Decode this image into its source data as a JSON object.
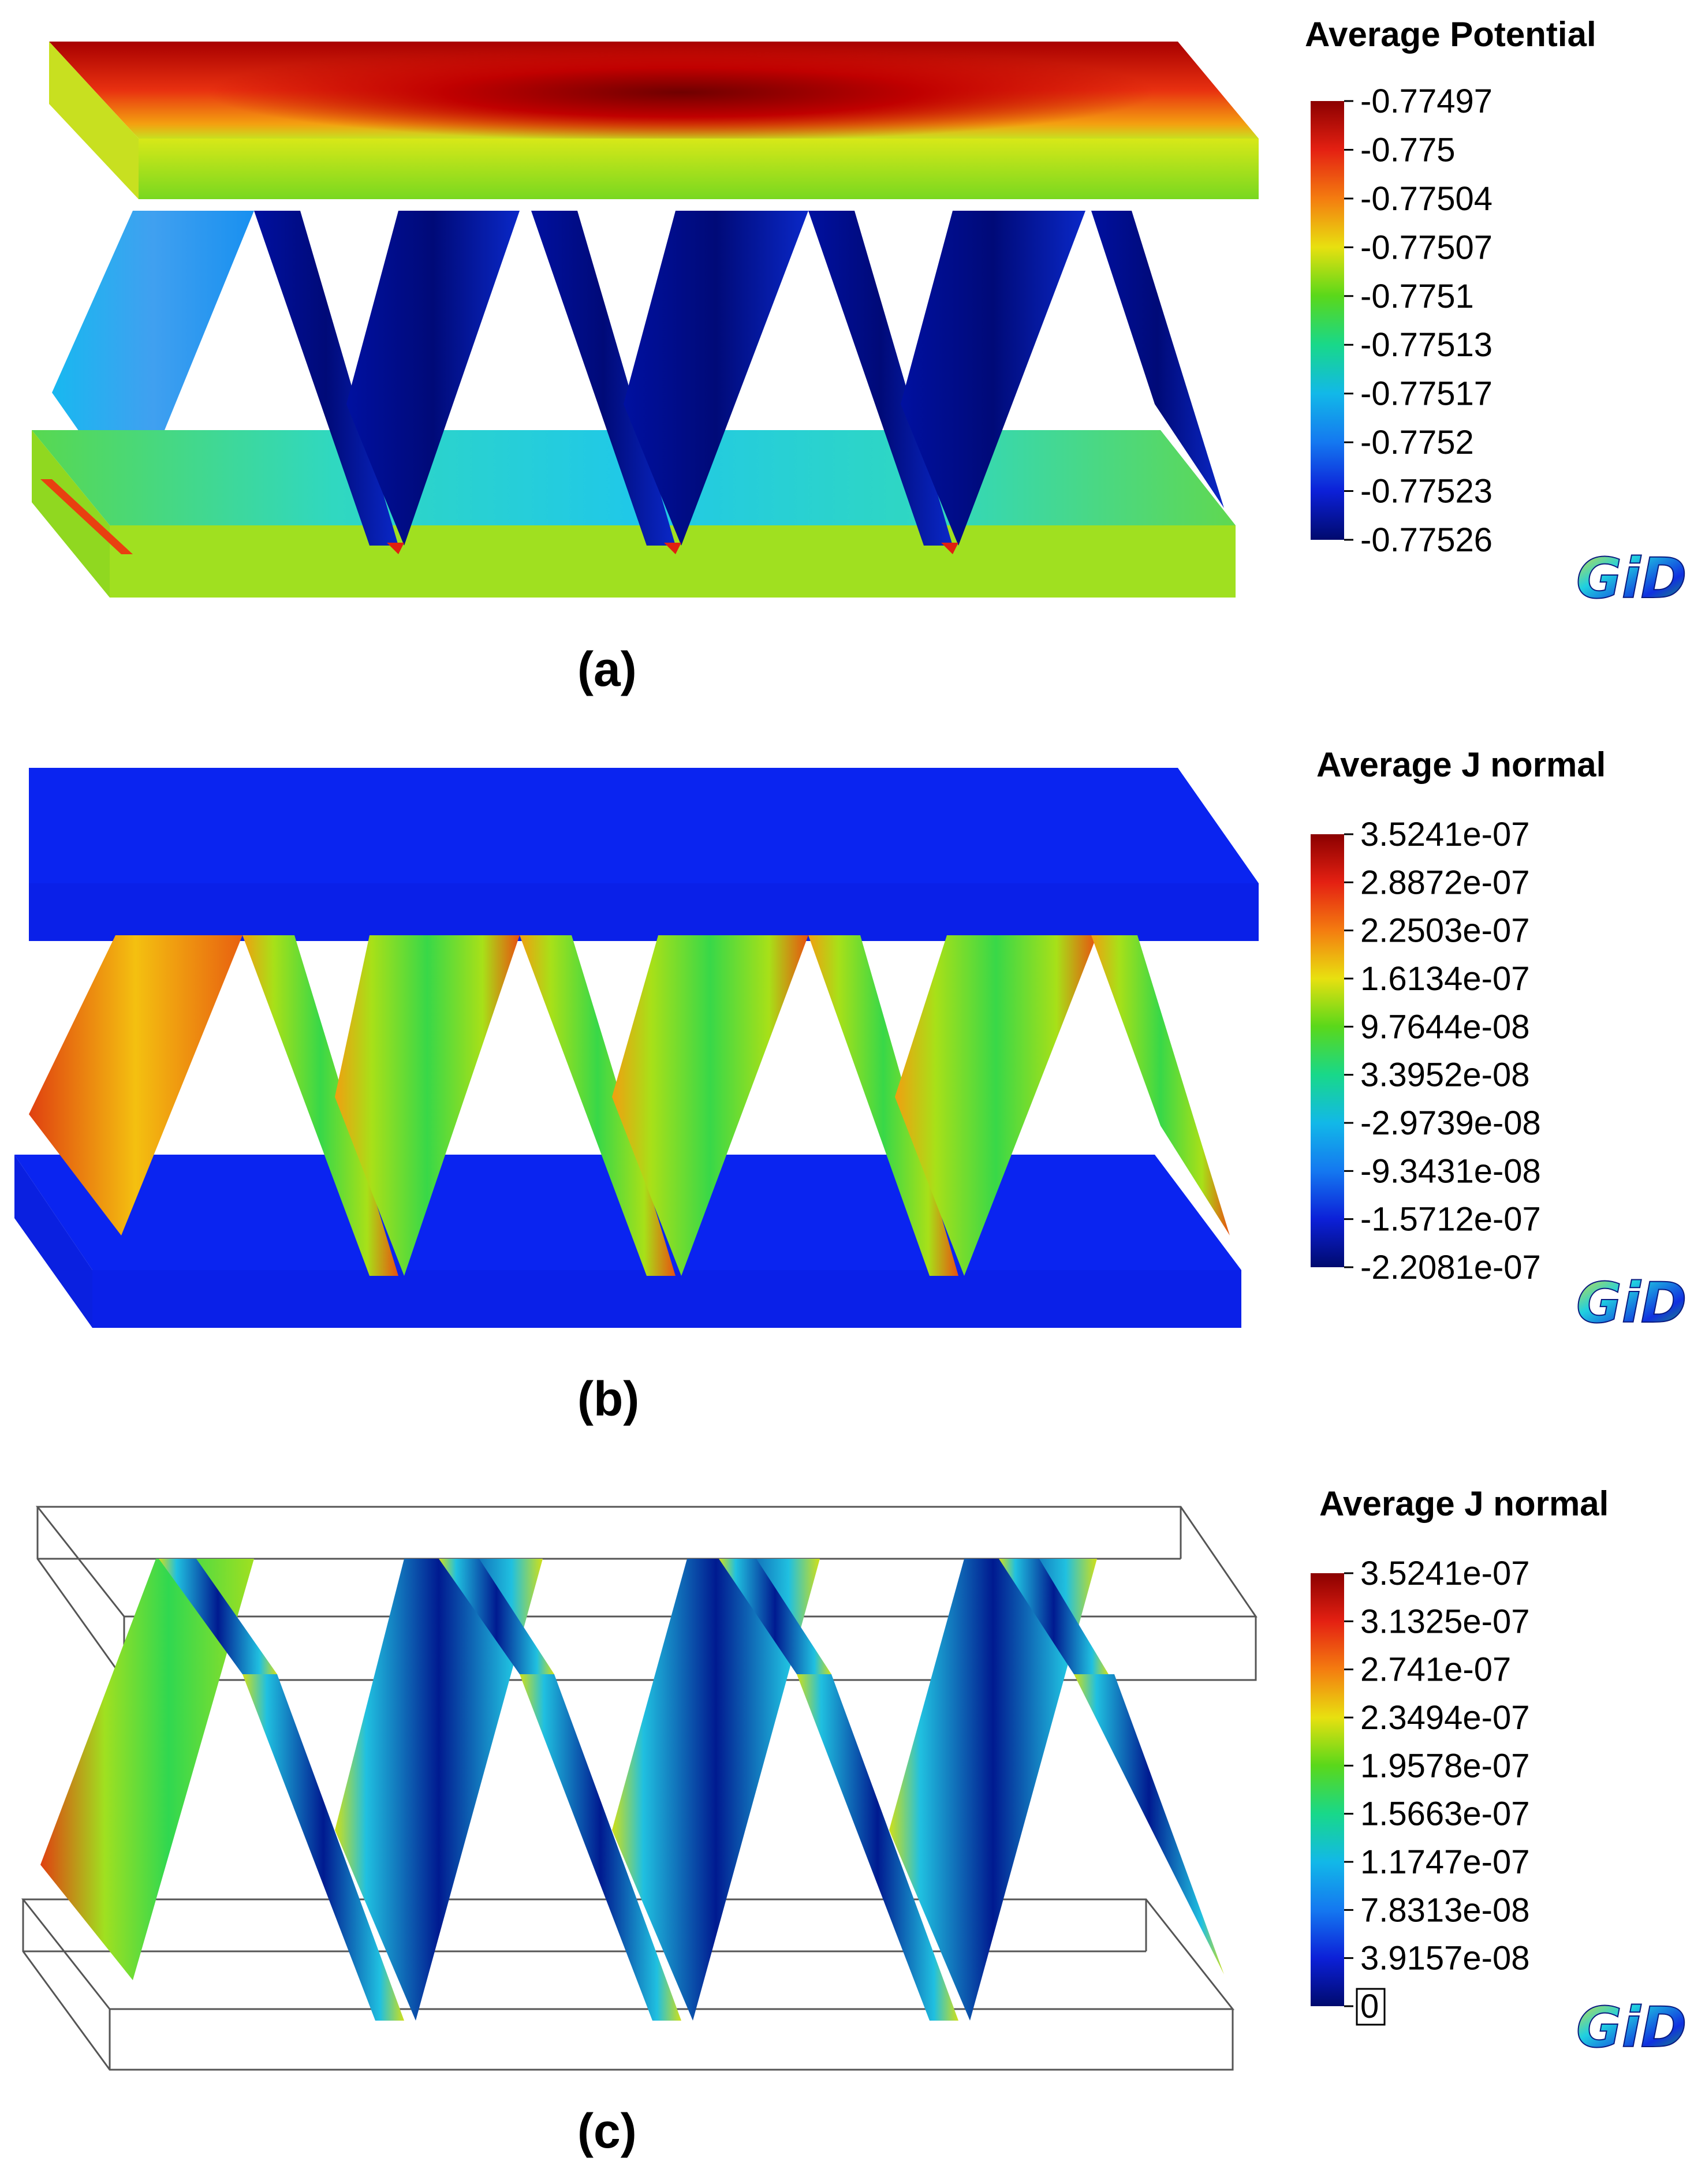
{
  "figure": {
    "panels": [
      {
        "label": "(a)",
        "legend_title": "Average Potential",
        "ticks": [
          "-0.77497",
          "-0.775",
          "-0.77504",
          "-0.77507",
          "-0.7751",
          "-0.77513",
          "-0.77517",
          "-0.7752",
          "-0.77523",
          "-0.77526"
        ],
        "scale_colors": [
          "#8b0000",
          "#e42012",
          "#f47c10",
          "#e8e010",
          "#5ad81a",
          "#18d88a",
          "#12b8e8",
          "#1478f0",
          "#0c20d8",
          "#000a6e"
        ],
        "mode": "potential"
      },
      {
        "label": "(b)",
        "legend_title": "Average J normal",
        "ticks": [
          "3.5241e-07",
          "2.8872e-07",
          "2.2503e-07",
          "1.6134e-07",
          "9.7644e-08",
          "3.3952e-08",
          "-2.9739e-08",
          "-9.3431e-08",
          "-1.5712e-07",
          "-2.2081e-07"
        ],
        "scale_colors": [
          "#8b0000",
          "#e42012",
          "#f47c10",
          "#e8e010",
          "#5ad81a",
          "#18d88a",
          "#12b8e8",
          "#1478f0",
          "#0c20d8",
          "#000a6e"
        ],
        "mode": "jnormal"
      },
      {
        "label": "(c)",
        "legend_title": "Average J normal",
        "ticks": [
          "3.5241e-07",
          "3.1325e-07",
          "2.741e-07",
          "2.3494e-07",
          "1.9578e-07",
          "1.5663e-07",
          "1.1747e-07",
          "7.8313e-08",
          "3.9157e-08",
          "0"
        ],
        "scale_colors": [
          "#8b0000",
          "#e42012",
          "#f47c10",
          "#e8e010",
          "#5ad81a",
          "#18d88a",
          "#12b8e8",
          "#1478f0",
          "#0c20d8",
          "#000a6e"
        ],
        "mode": "wireframe"
      }
    ],
    "logo_text": "GiD"
  }
}
